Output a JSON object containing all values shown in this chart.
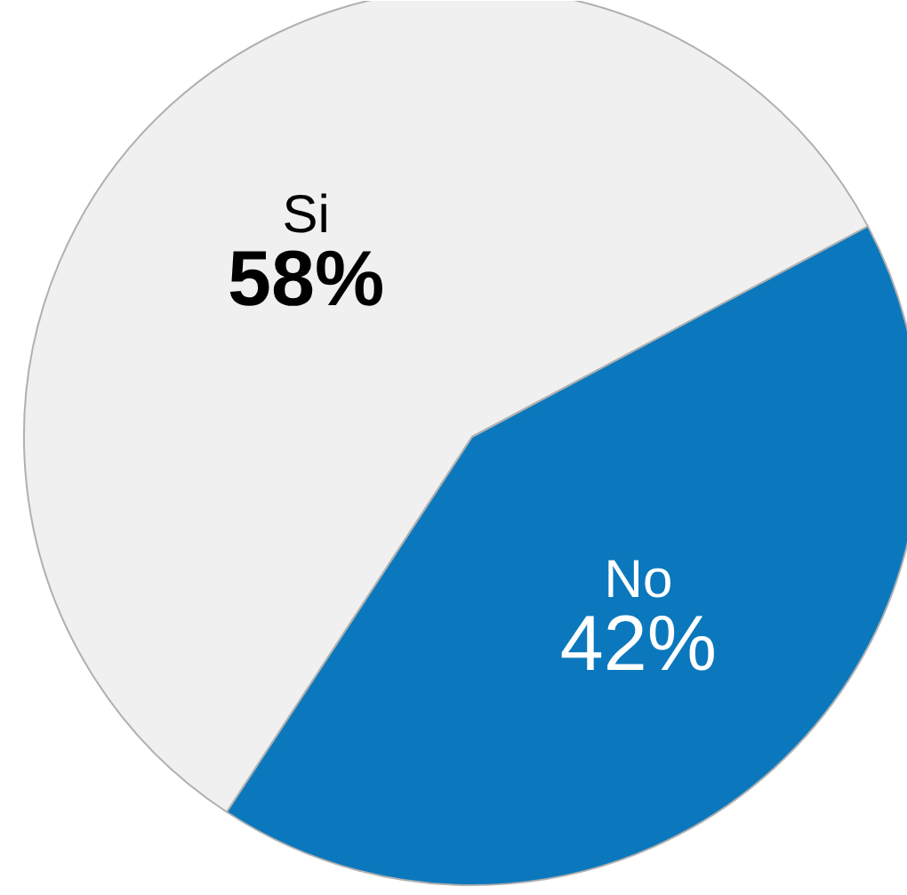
{
  "chart_data": {
    "type": "pie",
    "categories": [
      "Si",
      "No"
    ],
    "values": [
      58,
      42
    ],
    "colors": [
      "#f0f0f0",
      "#0b78bd"
    ],
    "value_labels": [
      "58%",
      "42%"
    ]
  }
}
